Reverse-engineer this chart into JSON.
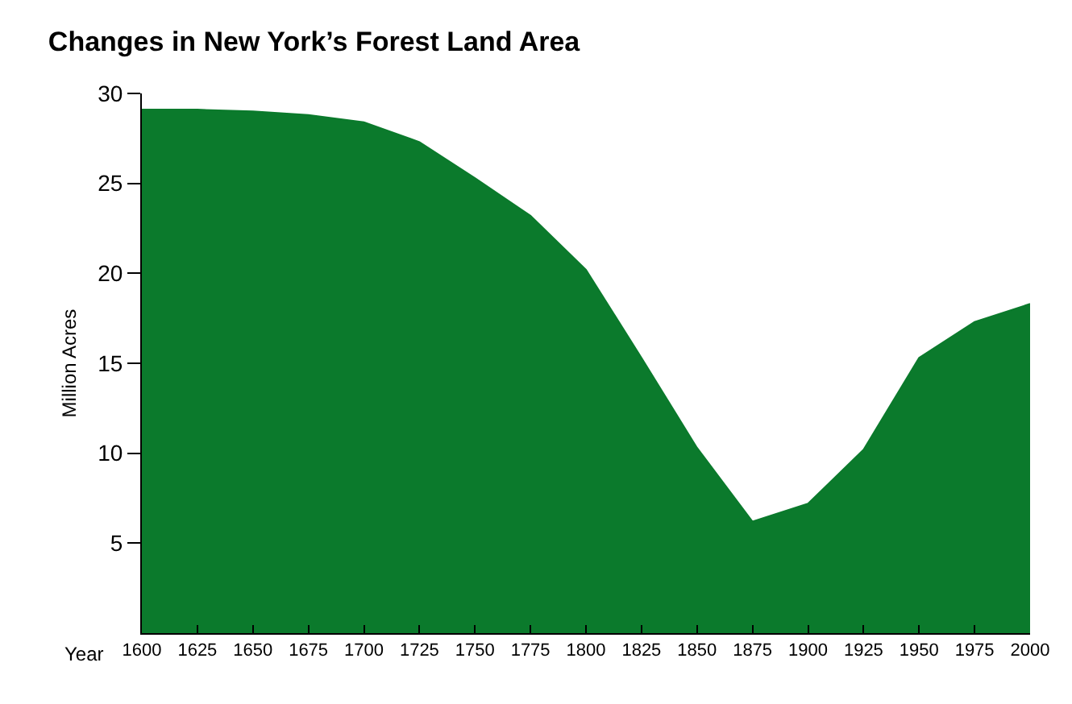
{
  "chart_data": {
    "type": "area",
    "title": "Changes in New York’s Forest Land Area",
    "xlabel": "Year",
    "ylabel": "Million Acres",
    "x": [
      1600,
      1625,
      1650,
      1675,
      1700,
      1725,
      1750,
      1775,
      1800,
      1825,
      1850,
      1875,
      1900,
      1925,
      1950,
      1975,
      2000
    ],
    "series": [
      {
        "color": "#0b7a2c",
        "values": [
          29.1,
          29.1,
          29,
          28.8,
          28.4,
          27.3,
          25.3,
          23.2,
          20.2,
          15.3,
          10.3,
          6.2,
          7.2,
          10.2,
          15.3,
          17.3,
          18.3
        ]
      }
    ],
    "xlim": [
      1600,
      2000
    ],
    "xticks": [
      1600,
      1625,
      1650,
      1675,
      1700,
      1725,
      1750,
      1775,
      1800,
      1825,
      1850,
      1875,
      1900,
      1925,
      1950,
      1975,
      2000
    ],
    "ylim": [
      0,
      30
    ],
    "yticks": [
      5,
      10,
      15,
      20,
      25,
      30
    ],
    "grid": false
  }
}
